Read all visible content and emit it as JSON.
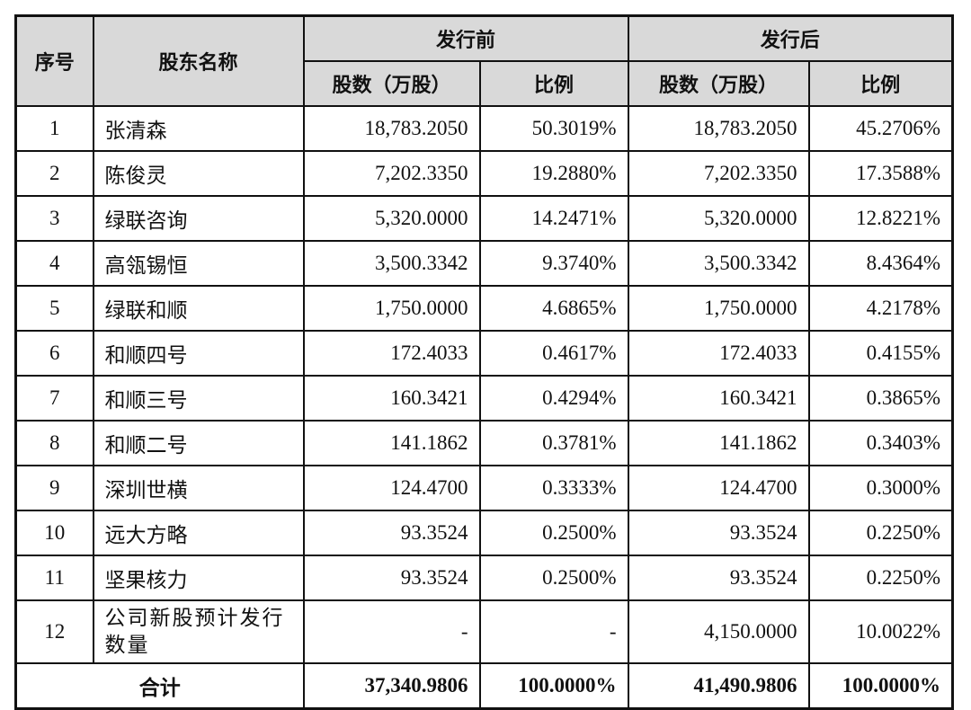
{
  "headers": {
    "index": "序号",
    "name": "股东名称",
    "before": "发行前",
    "after": "发行后",
    "shares": "股数（万股）",
    "ratio": "比例"
  },
  "rows": [
    {
      "no": "1",
      "name": "张清森",
      "before_shares": "18,783.2050",
      "before_ratio": "50.3019%",
      "after_shares": "18,783.2050",
      "after_ratio": "45.2706%"
    },
    {
      "no": "2",
      "name": "陈俊灵",
      "before_shares": "7,202.3350",
      "before_ratio": "19.2880%",
      "after_shares": "7,202.3350",
      "after_ratio": "17.3588%"
    },
    {
      "no": "3",
      "name": "绿联咨询",
      "before_shares": "5,320.0000",
      "before_ratio": "14.2471%",
      "after_shares": "5,320.0000",
      "after_ratio": "12.8221%"
    },
    {
      "no": "4",
      "name": "高瓴锡恒",
      "before_shares": "3,500.3342",
      "before_ratio": "9.3740%",
      "after_shares": "3,500.3342",
      "after_ratio": "8.4364%"
    },
    {
      "no": "5",
      "name": "绿联和顺",
      "before_shares": "1,750.0000",
      "before_ratio": "4.6865%",
      "after_shares": "1,750.0000",
      "after_ratio": "4.2178%"
    },
    {
      "no": "6",
      "name": "和顺四号",
      "before_shares": "172.4033",
      "before_ratio": "0.4617%",
      "after_shares": "172.4033",
      "after_ratio": "0.4155%"
    },
    {
      "no": "7",
      "name": "和顺三号",
      "before_shares": "160.3421",
      "before_ratio": "0.4294%",
      "after_shares": "160.3421",
      "after_ratio": "0.3865%"
    },
    {
      "no": "8",
      "name": "和顺二号",
      "before_shares": "141.1862",
      "before_ratio": "0.3781%",
      "after_shares": "141.1862",
      "after_ratio": "0.3403%"
    },
    {
      "no": "9",
      "name": "深圳世横",
      "before_shares": "124.4700",
      "before_ratio": "0.3333%",
      "after_shares": "124.4700",
      "after_ratio": "0.3000%"
    },
    {
      "no": "10",
      "name": "远大方略",
      "before_shares": "93.3524",
      "before_ratio": "0.2500%",
      "after_shares": "93.3524",
      "after_ratio": "0.2250%"
    },
    {
      "no": "11",
      "name": "坚果核力",
      "before_shares": "93.3524",
      "before_ratio": "0.2500%",
      "after_shares": "93.3524",
      "after_ratio": "0.2250%"
    },
    {
      "no": "12",
      "name": "公司新股预计发行数量",
      "before_shares": "-",
      "before_ratio": "-",
      "after_shares": "4,150.0000",
      "after_ratio": "10.0022%"
    }
  ],
  "total": {
    "label": "合计",
    "before_shares": "37,340.9806",
    "before_ratio": "100.0000%",
    "after_shares": "41,490.9806",
    "after_ratio": "100.0000%"
  }
}
